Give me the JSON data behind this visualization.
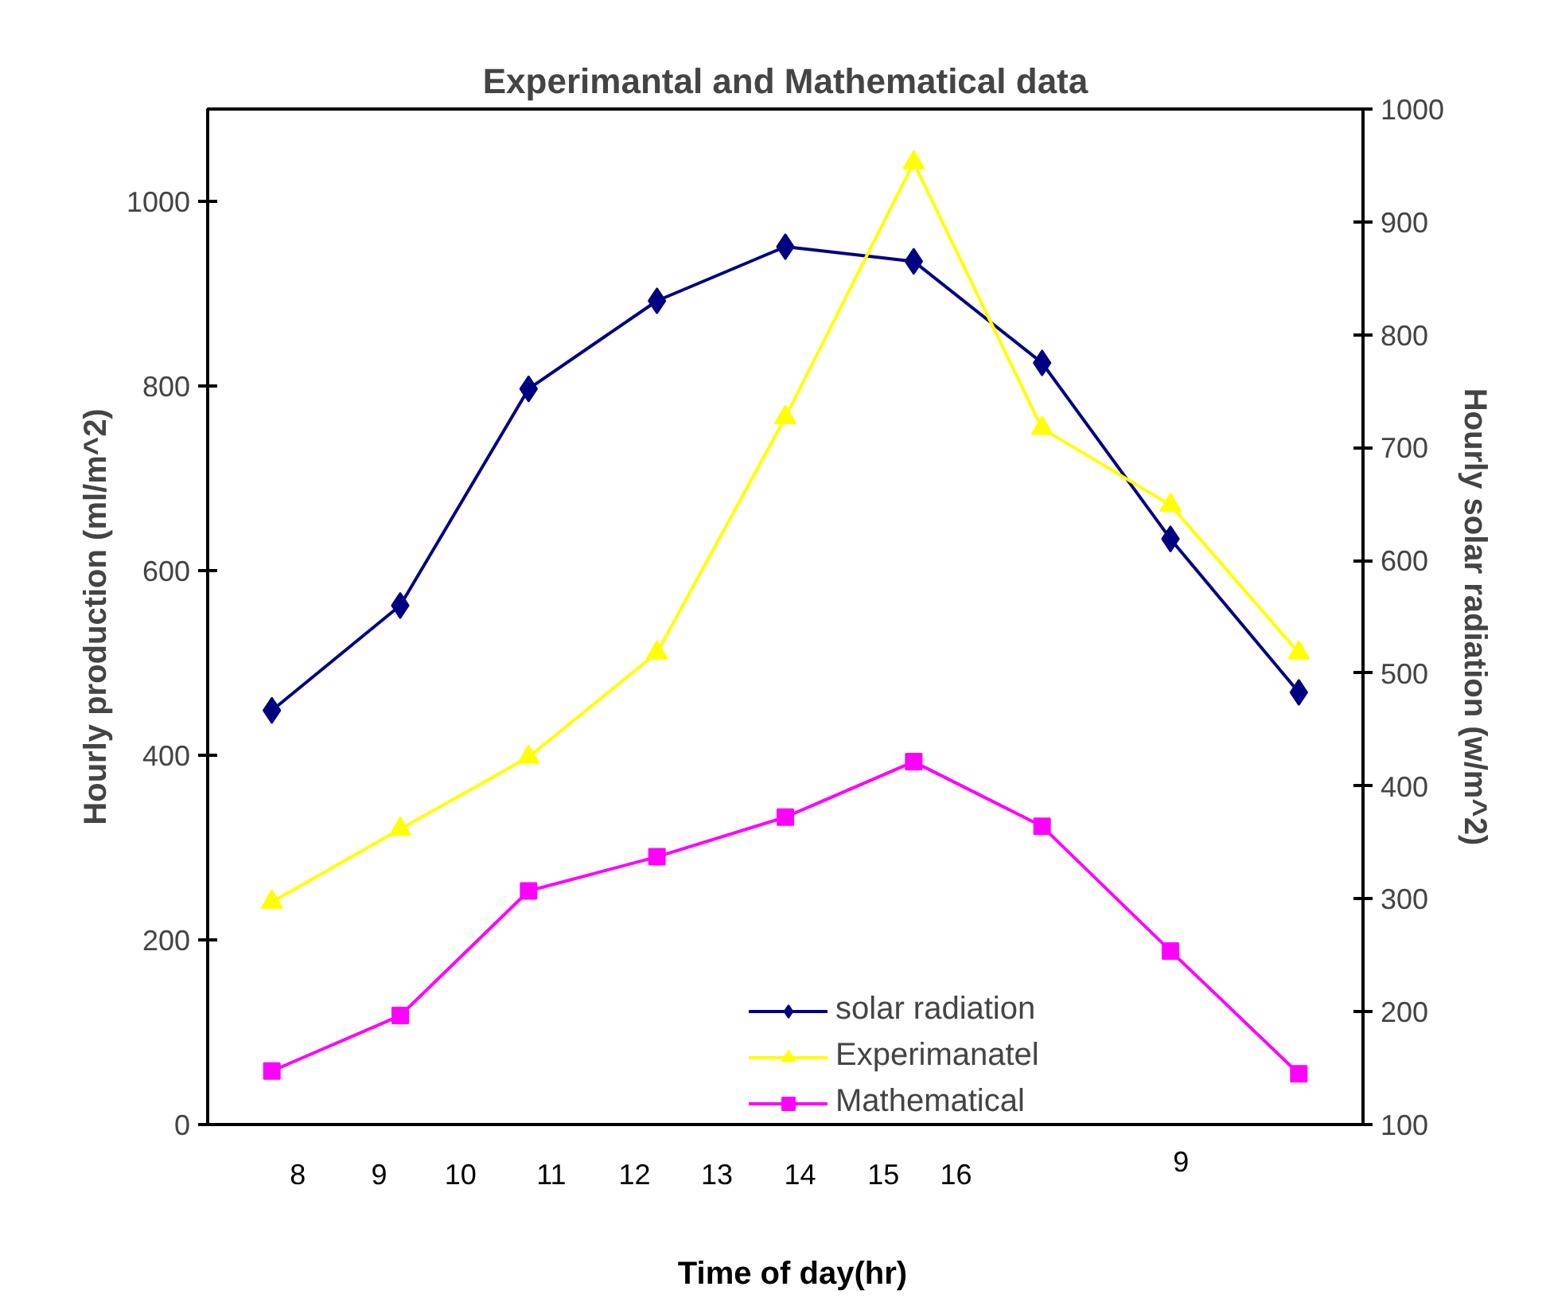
{
  "chart_data": {
    "type": "line",
    "title": "Experimantal and Mathematical data",
    "xlabel": "Time of day(hr)",
    "ylabel": "Hourly production (ml/m^2)",
    "y2label": "Hourly solar radiation (w/m^2)",
    "categories": [
      null,
      null,
      null,
      null,
      null,
      null,
      null,
      null,
      null
    ],
    "series": [
      {
        "name": "solar radiation",
        "color": "#000080",
        "marker": "diamond",
        "axis": "y2",
        "values": [
          467,
          560,
          752,
          830,
          878,
          865,
          775,
          619,
          483
        ]
      },
      {
        "name": "Experimanatel",
        "color": "#ffff00",
        "marker": "triangle",
        "values": [
          241,
          320,
          398,
          511,
          766,
          1042,
          754,
          671,
          511
        ]
      },
      {
        "name": "Mathematical",
        "color": "#ff00ff",
        "marker": "square",
        "values": [
          58,
          118,
          253,
          290,
          333,
          393,
          323,
          188,
          55
        ]
      }
    ],
    "ylim": [
      0,
      1100
    ],
    "yticks": [
      0,
      200,
      400,
      600,
      800,
      1000
    ],
    "y2lim": [
      100,
      1000
    ],
    "y2ticks": [
      100,
      200,
      300,
      400,
      500,
      600,
      700,
      800,
      900,
      1000
    ],
    "annotations": [
      "8",
      "9",
      "10",
      "11",
      "12",
      "13",
      "14",
      "15",
      "16",
      "9"
    ],
    "legend": "bottom",
    "grid": false
  }
}
